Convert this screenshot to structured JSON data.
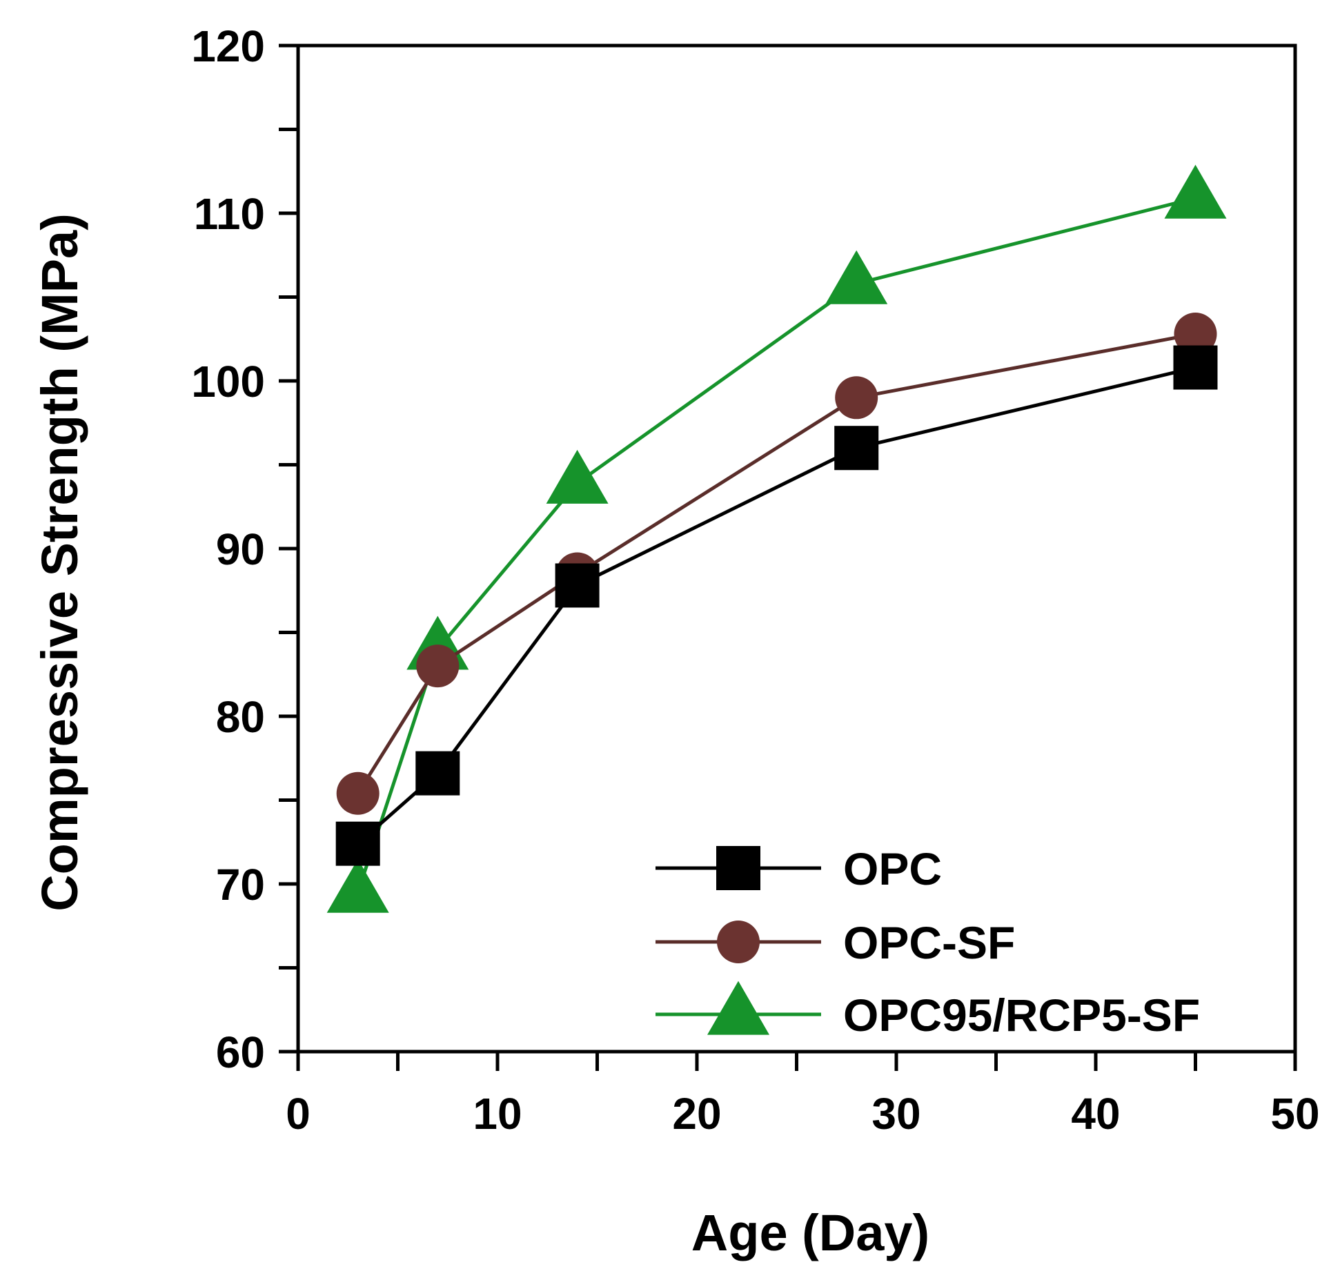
{
  "chart_data": {
    "type": "line",
    "title": "",
    "xlabel": "Age (Day)",
    "ylabel": "Compressive Strength (MPa)",
    "xlim": [
      0,
      50
    ],
    "ylim": [
      60,
      120
    ],
    "x_ticks": [
      0,
      10,
      20,
      30,
      40,
      50
    ],
    "x_tick_labels": [
      "0",
      "10",
      "20",
      "30",
      "40",
      "50"
    ],
    "y_ticks": [
      60,
      70,
      80,
      90,
      100,
      110,
      120
    ],
    "y_tick_labels": [
      "60",
      "70",
      "80",
      "90",
      "100",
      "110",
      "120"
    ],
    "x_minor_step": 5,
    "y_minor_step": 5,
    "grid": false,
    "legend_position": "bottom-right",
    "series": [
      {
        "name": "OPC",
        "marker": "square",
        "color": "#000000",
        "x": [
          3,
          7,
          14,
          28,
          45
        ],
        "values": [
          72.4,
          76.6,
          87.8,
          96.0,
          100.8
        ]
      },
      {
        "name": "OPC-SF",
        "marker": "circle",
        "color": "#5a2d2a",
        "marker_color": "#6b3330",
        "x": [
          3,
          7,
          14,
          28,
          45
        ],
        "values": [
          75.4,
          83.0,
          88.5,
          99.0,
          102.8
        ]
      },
      {
        "name": "OPC95/RCP5-SF",
        "marker": "triangle",
        "color": "#16932b",
        "x": [
          3,
          7,
          14,
          28,
          45
        ],
        "values": [
          69.5,
          84.0,
          93.9,
          105.8,
          110.9
        ]
      }
    ]
  }
}
